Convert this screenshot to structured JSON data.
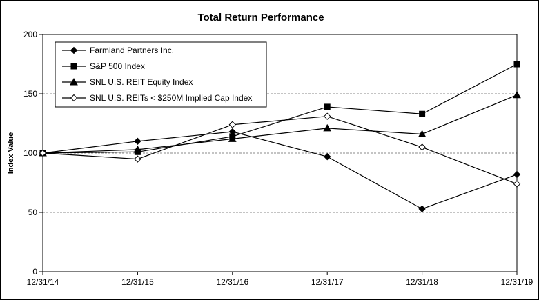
{
  "chart_data": {
    "type": "line",
    "title": "Total Return Performance",
    "xlabel": "",
    "ylabel": "Index Value",
    "categories": [
      "12/31/14",
      "12/31/15",
      "12/31/16",
      "12/31/17",
      "12/31/18",
      "12/31/19"
    ],
    "y_ticks": [
      "0",
      "50",
      "100",
      "150",
      "200"
    ],
    "ylim": [
      0,
      200
    ],
    "grid": "horizontal dashed",
    "legend_position": "top-left",
    "series": [
      {
        "name": "Farmland Partners Inc.",
        "marker": "diamond-filled",
        "values": [
          100,
          110,
          118,
          97,
          53,
          82
        ]
      },
      {
        "name": "S&P 500 Index",
        "marker": "square-filled",
        "values": [
          100,
          101,
          114,
          139,
          133,
          175
        ]
      },
      {
        "name": "SNL U.S. REIT Equity Index",
        "marker": "triangle-filled",
        "values": [
          100,
          103,
          112,
          121,
          116,
          149
        ]
      },
      {
        "name": "SNL U.S. REITs < $250M Implied Cap Index",
        "marker": "diamond-open",
        "values": [
          100,
          95,
          124,
          131,
          105,
          74
        ]
      }
    ]
  }
}
